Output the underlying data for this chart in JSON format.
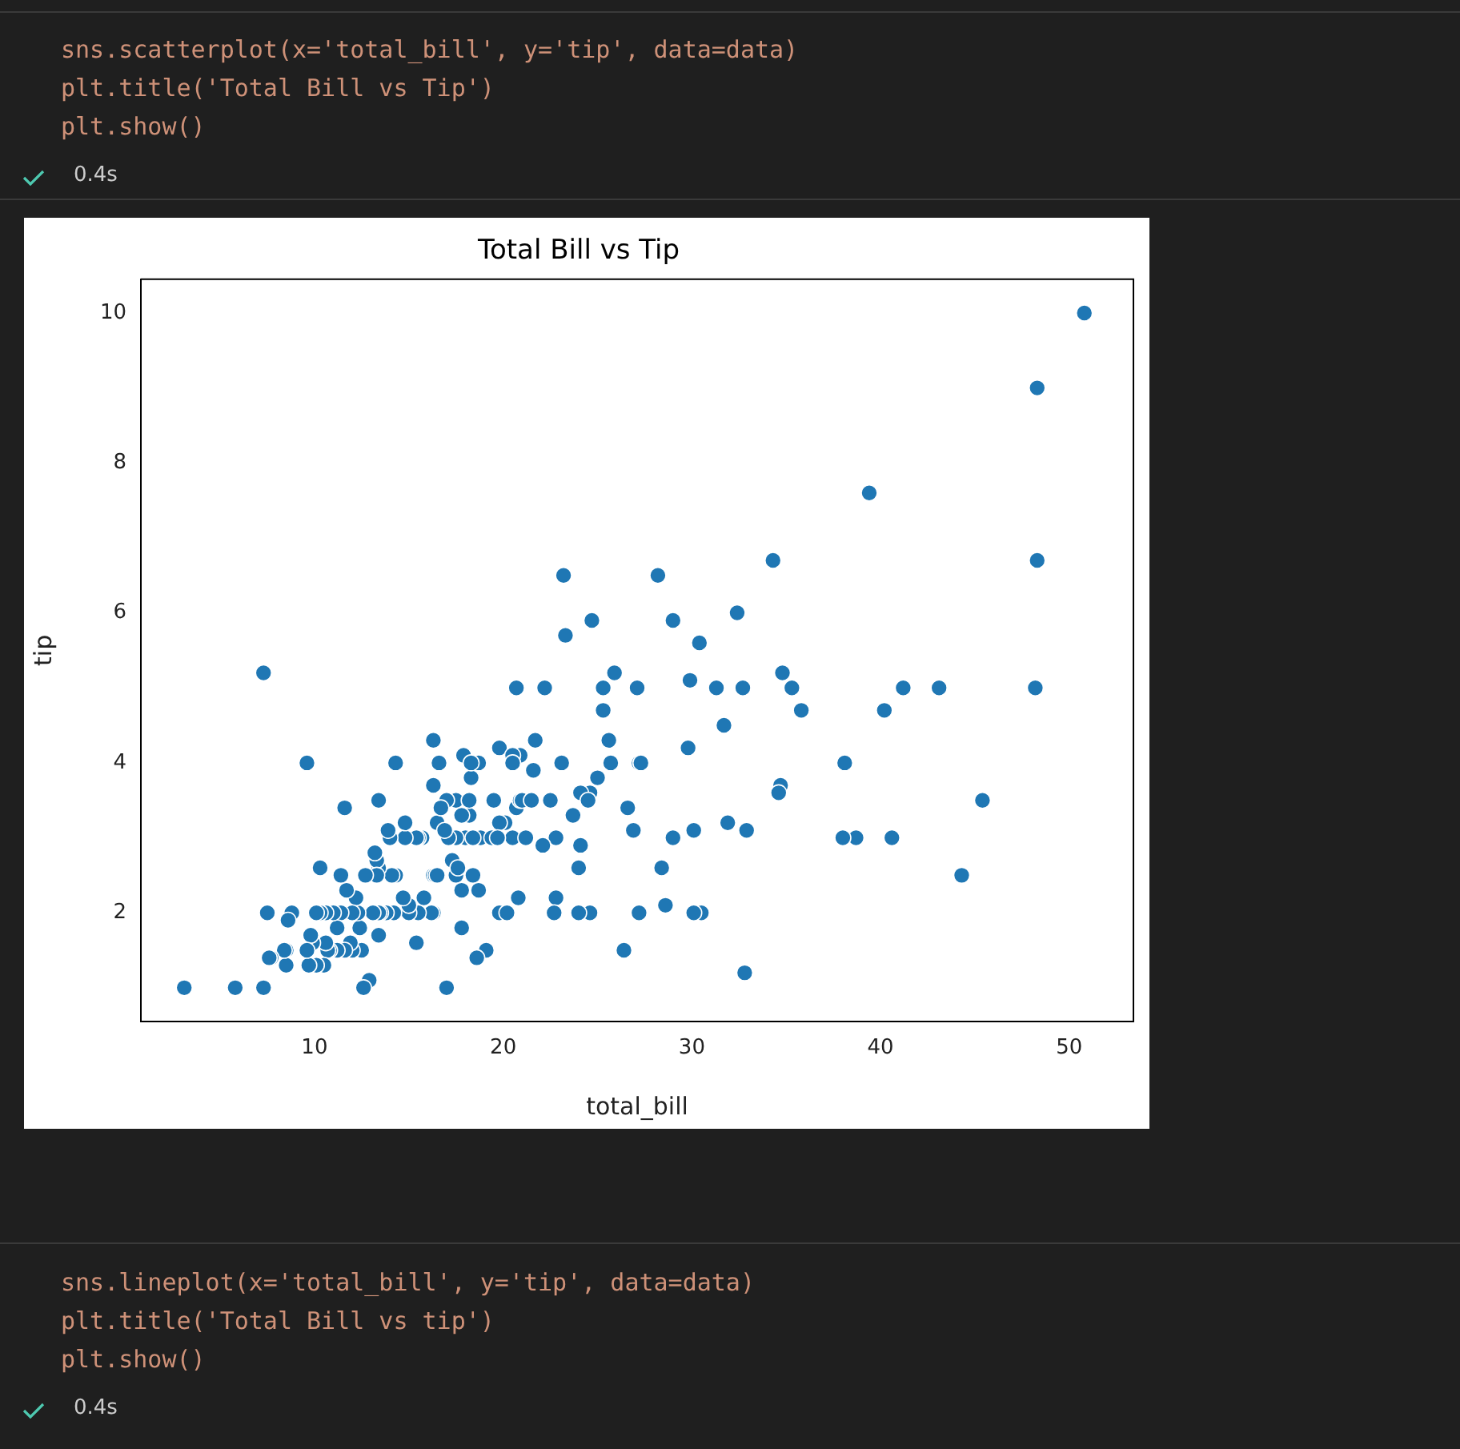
{
  "chart_data": {
    "type": "scatter",
    "title": "Total Bill vs Tip",
    "xlabel": "total_bill",
    "ylabel": "tip",
    "annotations": [
      "sns.scatterplot(x='total_bill', y='tip', data=data)",
      "plt.title('Total Bill vs Tip')",
      "plt.show()",
      "0.4s",
      "sns.lineplot(x='total_bill', y='tip', data=data)",
      "plt.title('Total Bill vs tip')",
      "plt.show()",
      "0.4s"
    ],
    "xlim": [
      0.8,
      53.4
    ],
    "xticks": [
      10,
      20,
      30,
      40,
      50
    ],
    "ylim": [
      0.55,
      10.45
    ],
    "yticks": [
      2,
      4,
      6,
      8,
      10
    ],
    "grid": false,
    "legend": false,
    "marker": "circle",
    "series": [
      {
        "color": "#1f77b4",
        "x": [
          50.8,
          48.3,
          39.4,
          48.3,
          48.2,
          44.3,
          45.4,
          43.1,
          41.2,
          40.2,
          40.6,
          38.7,
          38.1,
          38.0,
          34.8,
          35.3,
          34.3,
          32.4,
          32.7,
          32.8,
          31.7,
          31.3,
          30.4,
          29.9,
          29.0,
          28.2,
          30.1,
          29.8,
          30.5,
          29.0,
          28.4,
          28.6,
          27.2,
          26.9,
          25.9,
          25.7,
          24.6,
          24.7,
          25.6,
          25.3,
          23.7,
          23.3,
          23.2,
          22.2,
          22.5,
          22.8,
          22.8,
          22.7,
          24.1,
          24.5,
          24.6,
          24.0,
          23.1,
          20.7,
          20.7,
          20.5,
          20.9,
          20.8,
          21.0,
          21.2,
          21.6,
          21.5,
          21.7,
          20.1,
          19.8,
          19.8,
          19.8,
          20.2,
          20.9,
          26.4,
          27.2,
          27.3,
          27.1,
          26.6,
          25.0,
          25.3,
          24.1,
          32.9,
          34.7,
          34.6,
          30.1,
          31.9,
          35.8,
          18.3,
          17.9,
          17.3,
          18.4,
          18.2,
          18.8,
          18.7,
          18.0,
          17.8,
          17.5,
          17.5,
          17.5,
          17.1,
          17.6,
          17.8,
          17.0,
          17.0,
          16.3,
          16.3,
          16.2,
          16.3,
          16.3,
          16.4,
          16.5,
          16.5,
          16.7,
          16.9,
          16.6,
          15.8,
          15.7,
          15.5,
          15.5,
          15.4,
          15.4,
          15.0,
          15.0,
          14.8,
          14.8,
          14.7,
          14.3,
          14.3,
          14.2,
          14.1,
          14.0,
          13.9,
          13.8,
          13.5,
          13.4,
          13.4,
          13.4,
          13.4,
          13.3,
          13.3,
          13.2,
          13.1,
          12.9,
          12.7,
          12.6,
          12.5,
          12.4,
          12.3,
          12.2,
          12.0,
          12.0,
          11.9,
          11.7,
          11.6,
          11.6,
          11.4,
          11.4,
          11.2,
          11.2,
          11.0,
          10.8,
          10.7,
          10.6,
          10.6,
          10.5,
          10.3,
          10.3,
          10.1,
          10.1,
          9.9,
          9.8,
          9.7,
          9.6,
          9.6,
          8.8,
          8.6,
          8.5,
          8.5,
          8.4,
          7.7,
          7.6,
          7.5,
          7.3,
          7.3,
          5.8,
          3.1,
          19.1,
          18.7,
          18.6,
          18.4,
          18.3,
          18.2,
          19.4,
          19.5,
          19.7,
          17.8,
          20.5,
          24.0,
          20.5,
          22.1
        ],
        "values": [
          10.0,
          9.0,
          7.6,
          6.7,
          5.0,
          2.5,
          3.5,
          5.0,
          5.0,
          4.7,
          3.0,
          3.0,
          4.0,
          3.0,
          5.2,
          5.0,
          6.7,
          6.0,
          5.0,
          1.2,
          4.5,
          5.0,
          5.6,
          5.1,
          3.0,
          6.5,
          3.1,
          4.2,
          2.0,
          5.9,
          2.6,
          2.1,
          4.0,
          3.1,
          5.2,
          4.0,
          3.6,
          5.9,
          4.3,
          4.7,
          3.3,
          5.7,
          6.5,
          5.0,
          3.5,
          2.2,
          3.0,
          2.0,
          3.6,
          3.5,
          2.0,
          2.6,
          4.0,
          5.0,
          3.4,
          3.0,
          3.5,
          2.2,
          3.5,
          3.0,
          3.9,
          3.5,
          4.3,
          3.2,
          3.2,
          2.0,
          4.2,
          2.0,
          4.1,
          1.5,
          2.0,
          4.0,
          5.0,
          3.4,
          3.8,
          5.0,
          2.9,
          3.1,
          3.7,
          3.6,
          2.0,
          3.2,
          4.7,
          3.8,
          4.1,
          2.7,
          2.5,
          3.3,
          3.0,
          4.0,
          3.0,
          3.3,
          3.5,
          2.5,
          3.0,
          3.0,
          2.6,
          2.3,
          3.5,
          1.0,
          3.7,
          2.0,
          2.0,
          2.5,
          4.3,
          2.5,
          2.5,
          3.2,
          3.4,
          3.1,
          4.0,
          2.2,
          3.0,
          3.0,
          2.0,
          1.6,
          3.0,
          2.0,
          2.1,
          3.0,
          3.2,
          2.2,
          4.0,
          2.5,
          2.0,
          2.5,
          3.0,
          3.1,
          2.0,
          2.0,
          3.5,
          1.7,
          2.6,
          2.0,
          2.7,
          2.5,
          2.8,
          2.0,
          1.1,
          2.5,
          1.0,
          1.5,
          1.8,
          2.0,
          2.2,
          1.5,
          2.0,
          1.6,
          2.3,
          3.4,
          1.5,
          2.0,
          2.5,
          1.8,
          1.5,
          2.0,
          1.5,
          1.5,
          2.0,
          1.6,
          1.3,
          2.0,
          2.6,
          2.0,
          1.3,
          1.6,
          1.7,
          1.3,
          4.0,
          1.5,
          2.0,
          1.9,
          1.5,
          1.3,
          1.5,
          1.4,
          1.4,
          2.0,
          5.2,
          1.0,
          1.0,
          1.0,
          1.5,
          2.3,
          1.4,
          3.0,
          4.0,
          3.5,
          3.0,
          3.5,
          3.0,
          1.8,
          4.1,
          2.0,
          4.0,
          2.9
        ]
      }
    ]
  }
}
